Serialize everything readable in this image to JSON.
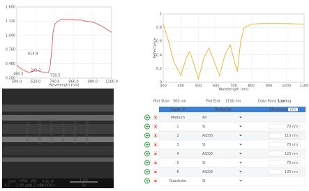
{
  "chart_data": [
    {
      "type": "line",
      "x_label": "Wavelength (nm)",
      "x": [
        500,
        520,
        540,
        560,
        580,
        600,
        620,
        640,
        660,
        680,
        700,
        710,
        720,
        730,
        740,
        760,
        780,
        800,
        820,
        840,
        860,
        880,
        900,
        920,
        940,
        960,
        980,
        1000,
        1020,
        1040,
        1060,
        1080,
        1100
      ],
      "values": [
        0.46,
        0.4,
        0.36,
        0.33,
        0.31,
        0.33,
        0.36,
        0.34,
        0.32,
        0.31,
        0.31,
        0.4,
        0.7,
        1.1,
        1.26,
        1.32,
        1.35,
        1.36,
        1.35,
        1.36,
        1.35,
        1.34,
        1.35,
        1.33,
        1.32,
        1.31,
        1.3,
        1.28,
        1.25,
        1.22,
        1.18,
        1.14,
        1.1
      ],
      "color": "#e06666",
      "xlim": [
        500,
        1100
      ],
      "ylim": [
        0.2,
        1.6
      ],
      "xticks": [
        {
          "value": 500,
          "label": "500.0"
        },
        {
          "value": 620,
          "label": "620.0"
        },
        {
          "value": 740,
          "label": "740.0"
        },
        {
          "value": 860,
          "label": "860.0"
        },
        {
          "value": 980,
          "label": "980.0"
        },
        {
          "value": 1100,
          "label": "1100.0"
        }
      ],
      "yticks": [
        {
          "value": 0.2,
          "label": "0.200"
        },
        {
          "value": 0.48,
          "label": "0.480"
        },
        {
          "value": 0.76,
          "label": "0.760"
        },
        {
          "value": 1.04,
          "label": "1.040"
        },
        {
          "value": 1.32,
          "label": "1.320"
        },
        {
          "value": 1.6,
          "label": "1.600"
        }
      ],
      "grid": true,
      "annotations": [
        "614.9",
        "480.3",
        "231.2",
        "730.5"
      ]
    },
    {
      "type": "line",
      "x_label": "Wavelength (nm)",
      "y_label": "Reflectance",
      "x": [
        300,
        330,
        360,
        400,
        430,
        450,
        470,
        500,
        530,
        560,
        590,
        620,
        650,
        680,
        700,
        720,
        740,
        760,
        800,
        850,
        900,
        1000,
        1100
      ],
      "values": [
        0.85,
        0.6,
        0.3,
        0.1,
        0.35,
        0.45,
        0.3,
        0.05,
        0.35,
        0.5,
        0.3,
        0.1,
        0.4,
        0.55,
        0.35,
        0.15,
        0.6,
        0.8,
        0.85,
        0.86,
        0.86,
        0.86,
        0.85
      ],
      "color": "#e8b840",
      "xlim": [
        300,
        1100
      ],
      "ylim": [
        0,
        1
      ],
      "xticks": [
        300,
        400,
        500,
        600,
        700,
        800,
        900,
        1000,
        1100
      ],
      "yticks": [
        0,
        0.2,
        0.4,
        0.6,
        0.8,
        1
      ],
      "grid": true
    }
  ],
  "image": {
    "labels": [
      "76.7 nm (1)",
      "128.0 nm (2)",
      "123.4 nm (3)",
      "78.4 nm (4)",
      "126.8 nm (5)",
      "101.9 nm (6)"
    ],
    "info_heads": [
      "spot",
      "HFW",
      "WD",
      "mag ⊞"
    ],
    "info_values": [
      "4.5",
      "2.98 µm",
      "10.2 mm",
      "50 000 x"
    ],
    "scale": "1 µm",
    "id": "S4"
  },
  "table": {
    "settings": [
      [
        "Plot Start",
        "500 nm"
      ],
      [
        "Plot End",
        "1100 nm"
      ],
      [
        "Data Point Spacing",
        "1 nm"
      ]
    ],
    "header": [
      "Layer #",
      "Material",
      "Thickness",
      "nm"
    ],
    "rows": [
      [
        "Medium",
        "Air",
        ""
      ],
      [
        "1",
        "Si",
        "70 nm"
      ],
      [
        "2",
        "Al2O3",
        "110 nm"
      ],
      [
        "3",
        "Si",
        "70 nm"
      ],
      [
        "4",
        "Al2O3",
        "120 nm"
      ],
      [
        "5",
        "Si",
        "70 nm"
      ],
      [
        "6",
        "Al2O3",
        "130 nm"
      ],
      [
        "Substrate",
        "Si",
        ""
      ]
    ]
  }
}
